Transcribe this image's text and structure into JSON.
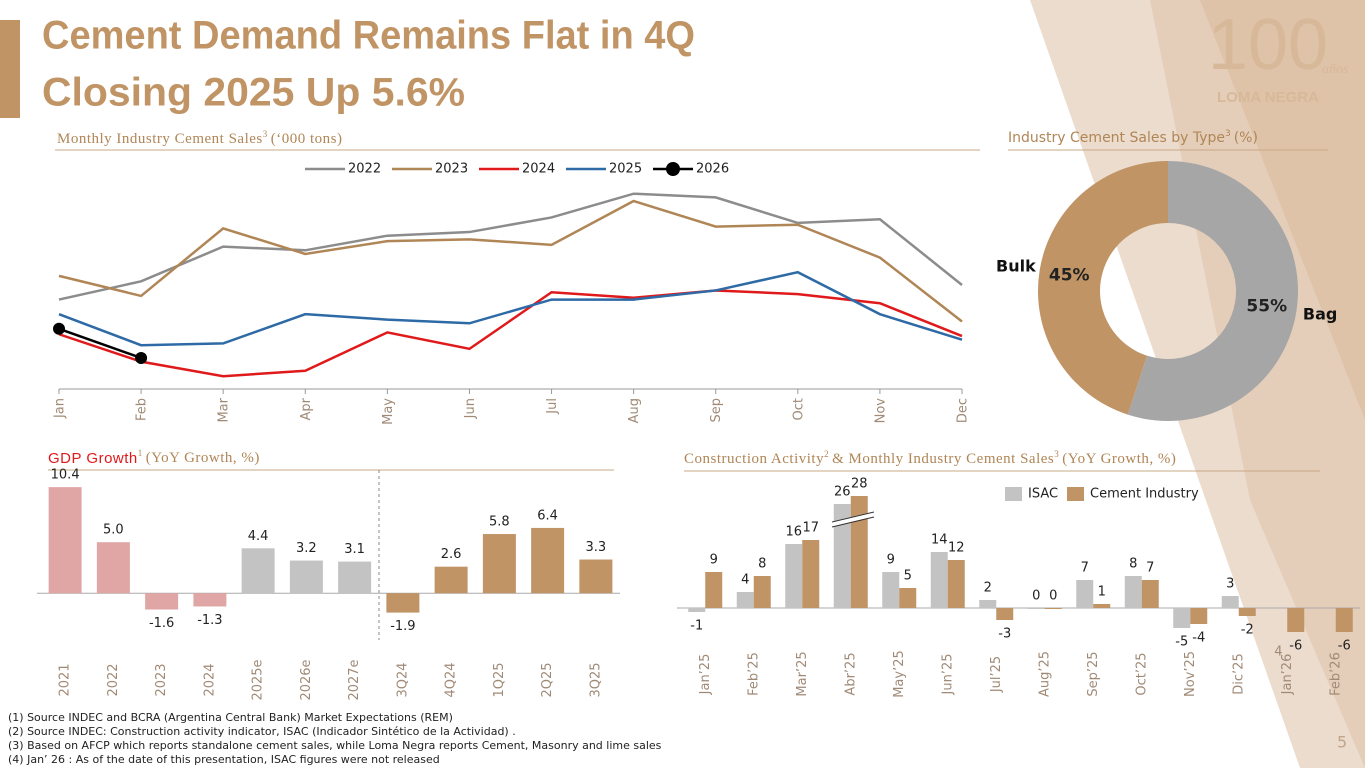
{
  "header": {
    "title_line_1": "Cement Demand Remains Flat in 4Q",
    "title_line_2": "Closing 2025 Up 5.6%"
  },
  "logo": {
    "number": "100",
    "script": "años",
    "name": "LOMA NEGRA"
  },
  "chart_data": [
    {
      "type": "line",
      "title": "Monthly Industry Cement Sales",
      "title_note": "3",
      "unit": "(‘000 tons)",
      "categories": [
        "Jan",
        "Feb",
        "Mar",
        "Apr",
        "May",
        "Jun",
        "Jul",
        "Aug",
        "Sep",
        "Oct",
        "Nov",
        "Dec"
      ],
      "ylim": [
        550,
        1150
      ],
      "legend": "top",
      "series": [
        {
          "name": "2022",
          "color": "#8c8c8c",
          "values": [
            795,
            845,
            940,
            930,
            970,
            980,
            1020,
            1085,
            1075,
            1005,
            1015,
            835
          ]
        },
        {
          "name": "2023",
          "color": "#b08656",
          "values": [
            860,
            805,
            990,
            920,
            955,
            960,
            945,
            1065,
            995,
            1000,
            910,
            735
          ]
        },
        {
          "name": "2024",
          "color": "#e0191b",
          "values": [
            700,
            625,
            585,
            600,
            705,
            660,
            815,
            800,
            820,
            810,
            785,
            695
          ]
        },
        {
          "name": "2025",
          "color": "#2e6aa6",
          "values": [
            755,
            670,
            675,
            755,
            740,
            730,
            795,
            795,
            820,
            870,
            755,
            685
          ]
        },
        {
          "name": "2026",
          "color": "#000000",
          "marker": true,
          "values": [
            715,
            635,
            null,
            null,
            null,
            null,
            null,
            null,
            null,
            null,
            null,
            null
          ]
        }
      ]
    },
    {
      "type": "donut",
      "title": "Industry Cement Sales by Type",
      "title_note": "3",
      "unit": "(%)",
      "categories": [
        "Bag",
        "Bulk"
      ],
      "values": [
        55,
        45
      ],
      "value_labels": [
        "55%",
        "45%"
      ],
      "colors": [
        "#a6a6a6",
        "#c09465"
      ]
    },
    {
      "type": "bar",
      "title": "GDP Growth",
      "title_note": "1",
      "unit": "(YoY Growth, %)",
      "categories": [
        "2021",
        "2022",
        "2023",
        "2024",
        "2025e",
        "2026e",
        "2027e",
        "3Q24",
        "4Q24",
        "1Q25",
        "2Q25",
        "3Q25"
      ],
      "values": [
        10.4,
        5.0,
        -1.6,
        -1.3,
        4.4,
        3.2,
        3.1,
        -1.9,
        2.6,
        5.8,
        6.4,
        3.3
      ],
      "value_labels": [
        "10.4",
        "5.0",
        "-1.6",
        "-1.3",
        "4.4",
        "3.2",
        "3.1",
        "-1.9",
        "2.6",
        "5.8",
        "6.4",
        "3.3"
      ],
      "colors": [
        "#e0a6a6",
        "#e0a6a6",
        "#e0a6a6",
        "#e0a6a6",
        "#c3c3c3",
        "#c3c3c3",
        "#c3c3c3",
        "#c09465",
        "#c09465",
        "#c09465",
        "#c09465",
        "#c09465"
      ],
      "ylim": [
        -4,
        11
      ]
    },
    {
      "type": "bar",
      "title": "Construction Activity",
      "title_note": "2",
      "title_2": "& Monthly Industry Cement Sales",
      "title_note_2": "3",
      "unit": "(YoY Growth, %)",
      "categories": [
        "Jan’25",
        "Feb’25",
        "Mar’25",
        "Abr’25",
        "May’25",
        "Jun’25",
        "Jul’25",
        "Aug’25",
        "Sep’25",
        "Oct’25",
        "Nov’25",
        "Dic’25",
        "Jan’26",
        "Feb’26"
      ],
      "category_notes": [
        null,
        null,
        null,
        null,
        null,
        null,
        null,
        null,
        null,
        null,
        null,
        null,
        "4",
        null
      ],
      "ylim": [
        -8,
        28
      ],
      "legend": "top",
      "series": [
        {
          "name": "ISAC",
          "color": "#c3c3c3",
          "values": [
            -1,
            4,
            16,
            26,
            9,
            14,
            2,
            0,
            7,
            8,
            -5,
            3,
            null,
            null
          ]
        },
        {
          "name": "Cement Industry",
          "color": "#c09465",
          "values": [
            9,
            8,
            17,
            28,
            5,
            12,
            -3,
            0,
            1,
            7,
            -4,
            -2,
            -6,
            -6
          ]
        }
      ]
    }
  ],
  "footnotes": [
    "(1)  Source INDEC and BCRA (Argentina Central Bank) Market Expectations (REM)",
    "(2)  Source INDEC: Construction activity indicator, ISAC (Indicador Sintético de la Actividad) .",
    "(3)  Based on AFCP which reports standalone cement sales, while Loma Negra reports Cement, Masonry and lime sales",
    "(4)  Jan’ 26 : As of the date of this presentation, ISAC figures  were not released"
  ],
  "page_number": "5"
}
